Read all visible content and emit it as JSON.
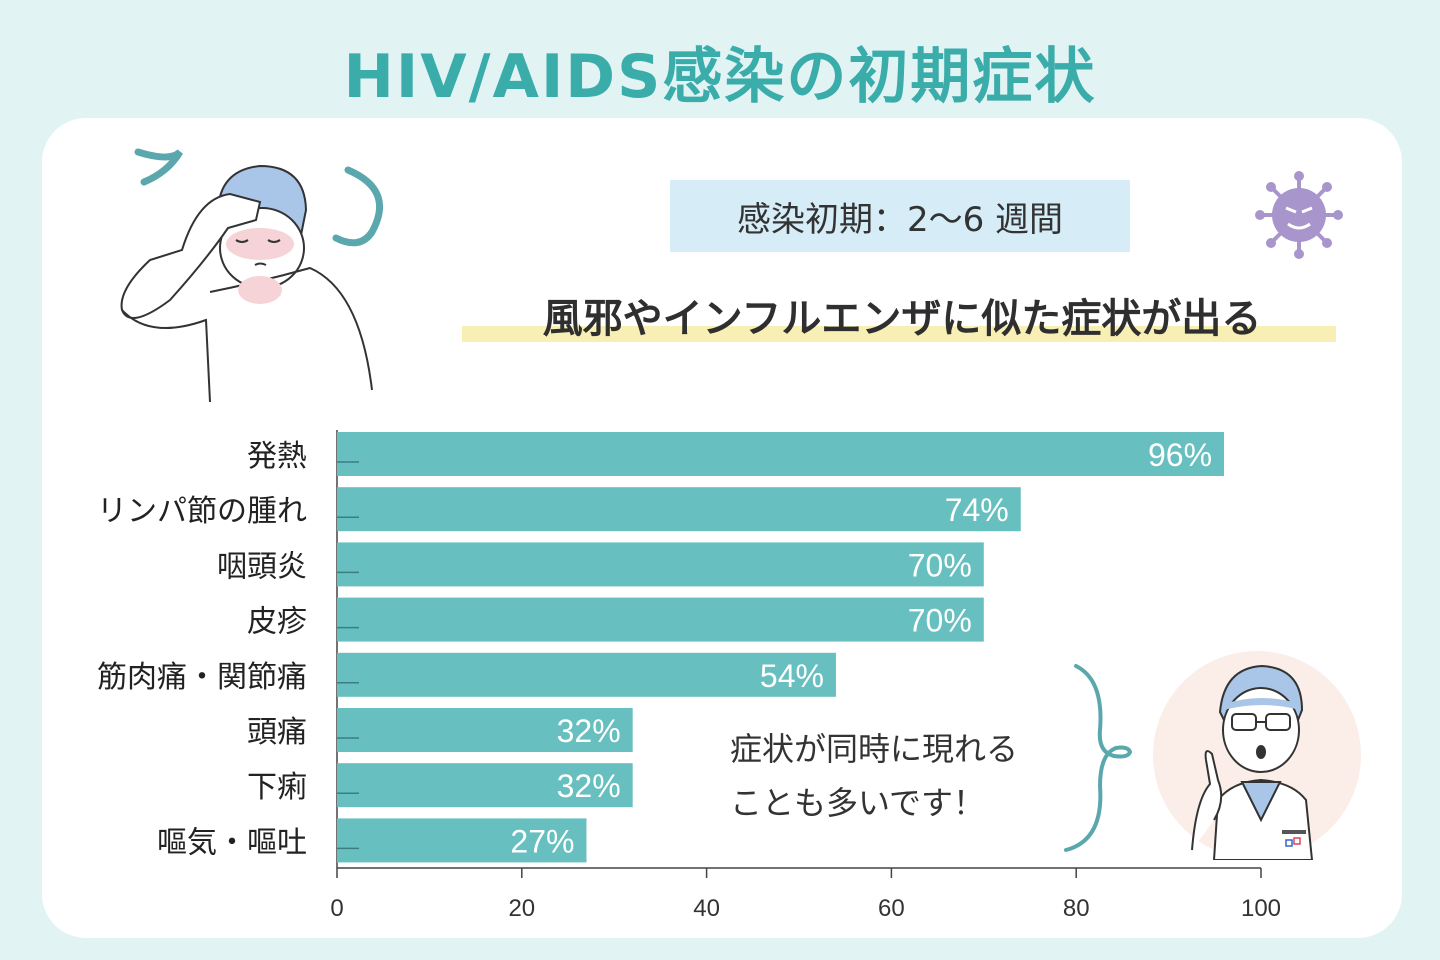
{
  "title": "HIV/AIDS感染の初期症状",
  "period_label": "感染初期：2〜6 週間",
  "headline": "風邪やインフルエンザに似た症状が出る",
  "note_lines": [
    "症状が同時に現れる",
    "ことも多いです！"
  ],
  "colors": {
    "background": "#e2f3f4",
    "title": "#3aacaa",
    "bar": "#67c0bf",
    "period_box": "#d6ecf7",
    "highlight": "#f8efb5",
    "virus": "#a795cc",
    "bracket": "#5aa8ad"
  },
  "icons": [
    "sick-person-illustration",
    "virus-icon",
    "doctor-illustration"
  ],
  "chart_data": {
    "type": "bar",
    "orientation": "horizontal",
    "categories": [
      "発熱",
      "リンパ節の腫れ",
      "咽頭炎",
      "皮疹",
      "筋肉痛・関節痛",
      "頭痛",
      "下痢",
      "嘔気・嘔吐"
    ],
    "values": [
      96,
      74,
      70,
      70,
      54,
      32,
      32,
      27
    ],
    "value_labels": [
      "96%",
      "74%",
      "70%",
      "70%",
      "54%",
      "32%",
      "32%",
      "27%"
    ],
    "x_ticks": [
      "0",
      "20",
      "40",
      "60",
      "80",
      "100"
    ],
    "xlim": [
      0,
      100
    ],
    "xlabel": "",
    "ylabel": "",
    "grid": false
  }
}
